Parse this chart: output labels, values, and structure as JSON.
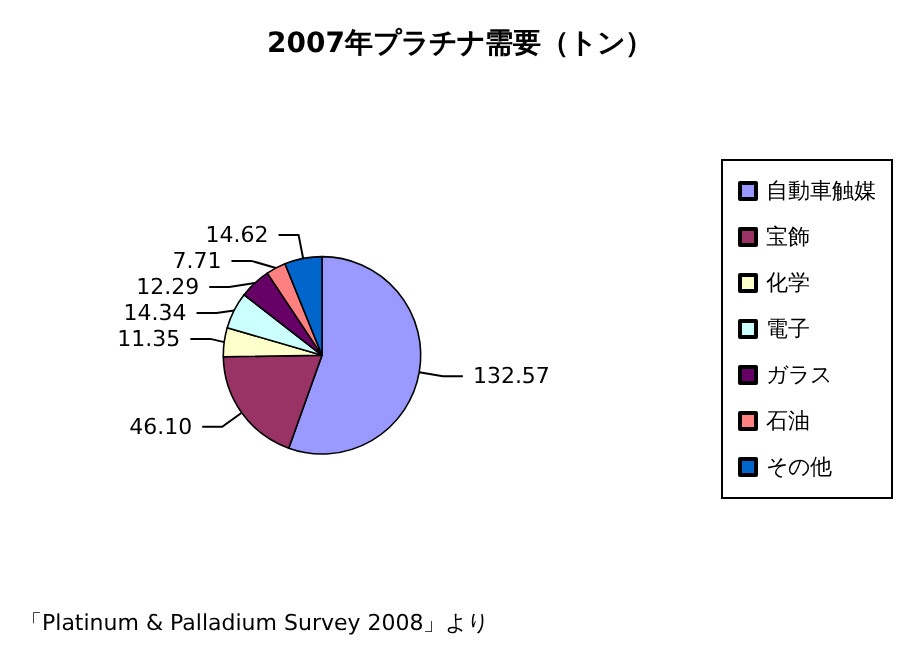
{
  "chart_data": {
    "type": "pie",
    "title": "2007年プラチナ需要（トン）",
    "categories": [
      "自動車触媒",
      "宝飾",
      "化学",
      "電子",
      "ガラス",
      "石油",
      "その他"
    ],
    "values": [
      132.57,
      46.1,
      11.35,
      14.34,
      12.29,
      7.71,
      14.62
    ],
    "value_labels": [
      "132.57",
      "46.10",
      "11.35",
      "14.34",
      "12.29",
      "7.71",
      "14.62"
    ],
    "colors": [
      "#9999ff",
      "#993366",
      "#ffffcc",
      "#ccffff",
      "#660066",
      "#ff8080",
      "#0066cc"
    ],
    "legend": "right",
    "annotations": [
      "「Platinum & Palladium Survey 2008」より"
    ]
  }
}
